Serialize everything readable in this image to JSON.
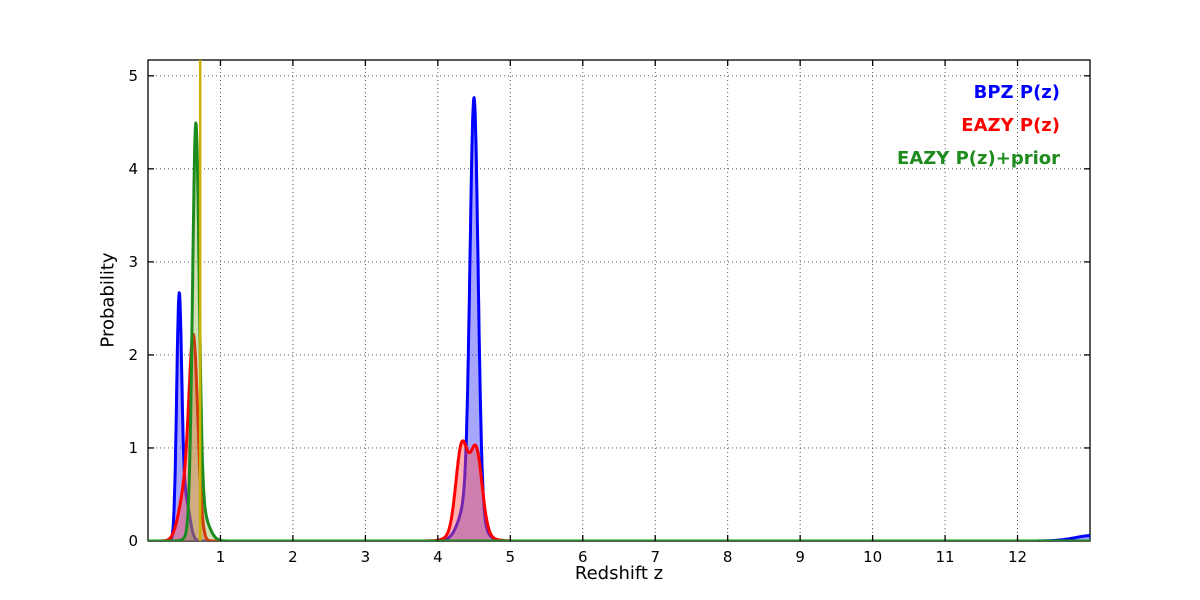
{
  "figure": {
    "background": "#ffffff",
    "frame_color": "#000000",
    "grid_color": "#444444"
  },
  "chart_data": {
    "type": "line",
    "title": "",
    "xlabel": "Redshift z",
    "ylabel": "Probability",
    "xlim": [
      0,
      13
    ],
    "ylim": [
      0,
      5.17
    ],
    "xticks": [
      1,
      2,
      3,
      4,
      5,
      6,
      7,
      8,
      9,
      10,
      11,
      12
    ],
    "yticks": [
      0,
      1,
      2,
      3,
      4,
      5
    ],
    "grid": true,
    "grid_style": "dotted",
    "legend_position": "upper right",
    "legend": [
      {
        "label": "BPZ P(z)",
        "color": "#0000ff"
      },
      {
        "label": "EAZY P(z)",
        "color": "#ff0000"
      },
      {
        "label": "EAZY P(z)+prior",
        "color": "#1e8b1e"
      }
    ],
    "series": [
      {
        "name": "BPZ P(z)",
        "color": "#0000ff",
        "fill": "rgba(0,0,255,0.35)",
        "line_width": 3,
        "peaks_note": "narrow peak near z=0.45 (height ~2.6) and tall narrow peak at z=4.5 (height ~4.75)",
        "components": [
          {
            "center": 0.43,
            "sigma": 0.035,
            "amp": 2.55
          },
          {
            "center": 0.52,
            "sigma": 0.055,
            "amp": 0.45
          },
          {
            "center": 4.5,
            "sigma": 0.055,
            "amp": 4.3
          },
          {
            "center": 4.45,
            "sigma": 0.13,
            "amp": 0.5
          },
          {
            "center": 13.05,
            "sigma": 0.25,
            "amp": 0.06
          }
        ]
      },
      {
        "name": "EAZY P(z)",
        "color": "#ff0000",
        "fill": "rgba(255,80,80,0.45)",
        "line_width": 3,
        "peaks_note": "peak near z=0.63 (height ~2.15) and double bump near z=4.3-4.55 (height ~1.0)",
        "components": [
          {
            "center": 0.63,
            "sigma": 0.06,
            "amp": 1.95
          },
          {
            "center": 0.52,
            "sigma": 0.09,
            "amp": 0.55
          },
          {
            "center": 4.33,
            "sigma": 0.08,
            "amp": 0.9
          },
          {
            "center": 4.53,
            "sigma": 0.08,
            "amp": 0.85
          },
          {
            "center": 4.43,
            "sigma": 0.18,
            "amp": 0.15
          }
        ]
      },
      {
        "name": "EAZY P(z)+prior",
        "color": "#1e8b1e",
        "fill": "rgba(120,170,40,0.35)",
        "line_width": 3,
        "peaks_note": "tall narrow peak at z=0.66 (height ~4.5)",
        "components": [
          {
            "center": 0.66,
            "sigma": 0.045,
            "amp": 4.2
          },
          {
            "center": 0.72,
            "sigma": 0.1,
            "amp": 0.35
          }
        ]
      }
    ],
    "marker_line": {
      "x": 0.72,
      "color": "#c8b400",
      "width": 2.5,
      "note": "vertical yellow line rising past top of axes near z=0.72"
    }
  }
}
